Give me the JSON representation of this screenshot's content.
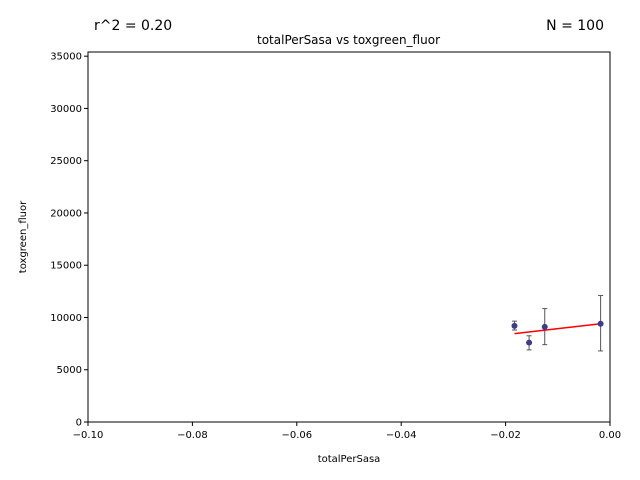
{
  "chart_data": {
    "type": "scatter",
    "title": "totalPerSasa vs toxgreen_fluor",
    "xlabel": "totalPerSasa",
    "ylabel": "toxgreen_fluor",
    "annotation_left": "r^2 = 0.20",
    "annotation_right": "N = 100",
    "xlim": [
      -0.1,
      0.0
    ],
    "ylim": [
      0,
      35400
    ],
    "x_ticks": [
      -0.1,
      -0.08,
      -0.06,
      -0.04,
      -0.02,
      0.0
    ],
    "x_tick_labels": [
      "−0.10",
      "−0.08",
      "−0.06",
      "−0.04",
      "−0.02",
      "0.00"
    ],
    "y_ticks": [
      0,
      5000,
      10000,
      15000,
      20000,
      25000,
      30000,
      35000
    ],
    "y_tick_labels": [
      "0",
      "5000",
      "10000",
      "15000",
      "20000",
      "25000",
      "30000",
      "35000"
    ],
    "grid": false,
    "points": [
      {
        "x": -0.0183,
        "y": 9200,
        "err_low": 8800,
        "err_high": 9650
      },
      {
        "x": -0.0155,
        "y": 7600,
        "err_low": 6900,
        "err_high": 8250
      },
      {
        "x": -0.0125,
        "y": 9100,
        "err_low": 7400,
        "err_high": 10850
      },
      {
        "x": -0.0018,
        "y": 9400,
        "err_low": 6800,
        "err_high": 12100
      }
    ],
    "fit_line": {
      "x": [
        -0.0183,
        -0.0018
      ],
      "y": [
        8450,
        9400
      ]
    },
    "colors": {
      "points": "#3b3b8f",
      "fit": "#ff0000",
      "errorbar": "#555555"
    }
  }
}
